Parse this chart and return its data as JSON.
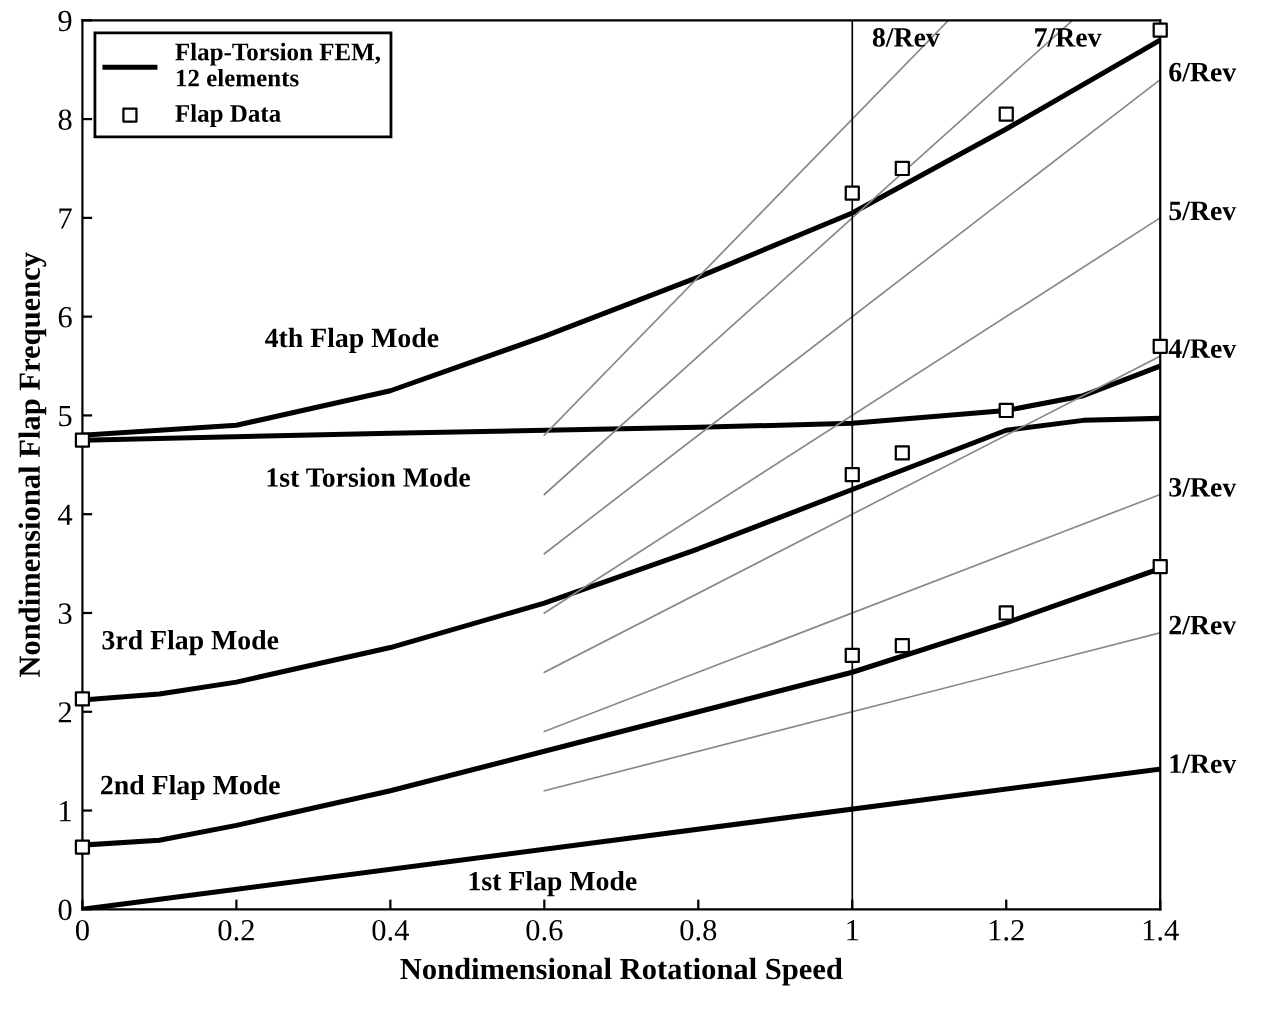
{
  "chart_data": {
    "type": "line",
    "xlabel": "Nondimensional Rotational Speed",
    "ylabel": "Nondimensional Flap Frequency",
    "xlim": [
      0,
      1.4
    ],
    "ylim": [
      0,
      9
    ],
    "xticks": [
      0,
      0.2,
      0.4,
      0.6,
      0.8,
      1,
      1.2,
      1.4
    ],
    "yticks": [
      0,
      1,
      2,
      3,
      4,
      5,
      6,
      7,
      8,
      9
    ],
    "grid": false,
    "legend": "top left",
    "series": [
      {
        "name": "Flap-Torsion FEM, 12 elements",
        "color": "#000000",
        "x": [
          0,
          0.2,
          0.4,
          0.6,
          0.8,
          1.0,
          1.2,
          1.4
        ],
        "values": [
          4.8,
          4.9,
          5.25,
          5.8,
          6.4,
          7.05,
          7.9,
          8.8
        ]
      },
      {
        "color": "#000000",
        "x": [
          0,
          0.4,
          0.8,
          1.0,
          1.2,
          1.3,
          1.4
        ],
        "values": [
          4.75,
          4.82,
          4.88,
          4.92,
          5.05,
          5.2,
          5.5
        ]
      },
      {
        "color": "#000000",
        "x": [
          0,
          0.1,
          0.2,
          0.4,
          0.6,
          0.8,
          1.0,
          1.2,
          1.3,
          1.4
        ],
        "values": [
          2.12,
          2.18,
          2.3,
          2.65,
          3.1,
          3.65,
          4.25,
          4.85,
          4.95,
          4.97
        ]
      },
      {
        "color": "#000000",
        "x": [
          0,
          0.1,
          0.2,
          0.4,
          0.6,
          0.8,
          1.0,
          1.2,
          1.4
        ],
        "values": [
          0.65,
          0.7,
          0.85,
          1.2,
          1.6,
          2.0,
          2.4,
          2.9,
          3.45
        ]
      },
      {
        "color": "#000000",
        "x": [
          0,
          1.4
        ],
        "values": [
          0,
          1.42
        ]
      },
      {
        "color": "#888888",
        "x": [
          0.6,
          1.4
        ],
        "values": [
          1.2,
          2.8
        ]
      },
      {
        "color": "#888888",
        "x": [
          0.6,
          1.4
        ],
        "values": [
          1.8,
          4.2
        ]
      },
      {
        "color": "#888888",
        "x": [
          0.6,
          1.4
        ],
        "values": [
          2.4,
          5.6
        ]
      },
      {
        "color": "#888888",
        "x": [
          0.6,
          1.4
        ],
        "values": [
          3.0,
          7.0
        ]
      },
      {
        "color": "#888888",
        "x": [
          0.6,
          1.4
        ],
        "values": [
          3.6,
          8.4
        ]
      },
      {
        "color": "#888888",
        "x": [
          0.6,
          1.286
        ],
        "values": [
          4.2,
          9.0
        ]
      },
      {
        "color": "#888888",
        "x": [
          0.6,
          1.125
        ],
        "values": [
          4.8,
          9.0
        ]
      },
      {
        "name": "Flap Data",
        "type": "scatter",
        "marker": "square",
        "color": "#000000",
        "x": [
          0,
          1.0,
          1.065,
          1.2,
          1.4,
          0,
          1.0,
          1.065,
          1.2,
          1.4,
          0,
          1.0,
          1.065,
          1.2,
          1.4
        ],
        "values": [
          0.63,
          2.57,
          2.67,
          3.0,
          3.47,
          2.13,
          4.4,
          4.62,
          5.05,
          5.7,
          4.75,
          7.25,
          7.5,
          8.05,
          8.9
        ]
      }
    ],
    "ref_lines": [
      {
        "axis": "x",
        "value": 1.0,
        "color": "#000000"
      }
    ],
    "annotations": [
      "4th Flap Mode",
      "1st Torsion Mode",
      "3rd Flap Mode",
      "2nd Flap Mode",
      "1st Flap Mode",
      "1/Rev",
      "2/Rev",
      "3/Rev",
      "4/Rev",
      "5/Rev",
      "6/Rev",
      "7/Rev",
      "8/Rev"
    ]
  }
}
